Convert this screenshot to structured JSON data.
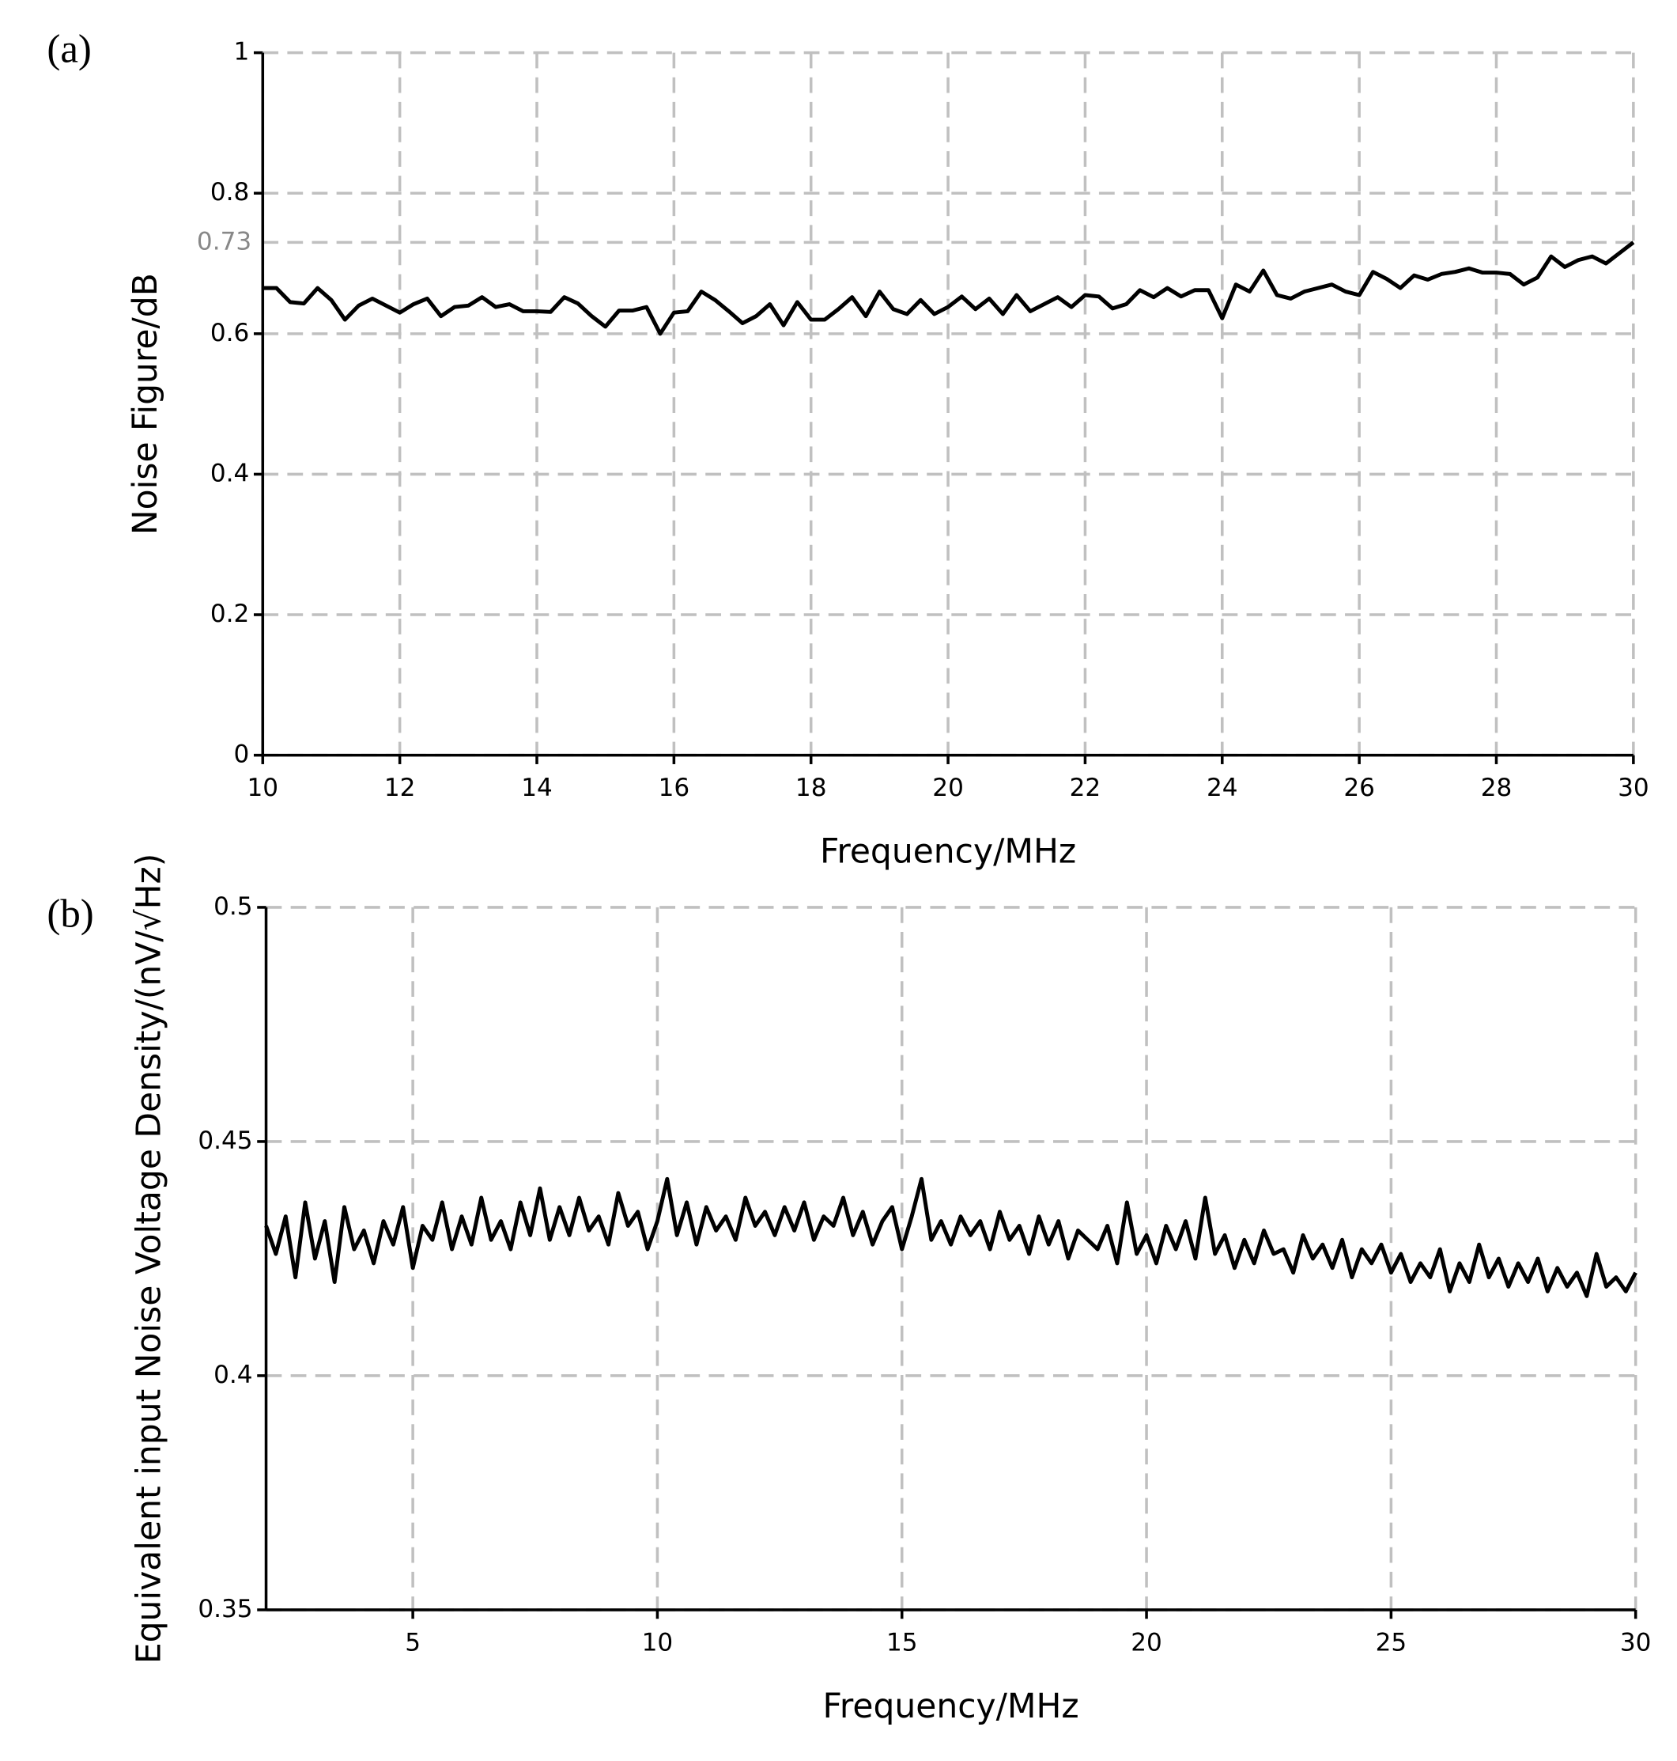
{
  "chart_data": [
    {
      "type": "line",
      "panel_label": "(a)",
      "x_label": "Frequency/MHz",
      "y_label": "Noise Figure/dB",
      "xlim": [
        10,
        30
      ],
      "xticks": [
        10,
        12,
        14,
        16,
        18,
        20,
        22,
        24,
        26,
        28,
        30
      ],
      "ylim": [
        0,
        1
      ],
      "yticks": [
        0,
        0.2,
        0.4,
        0.6,
        0.8,
        1
      ],
      "grid": true,
      "marker_tick": 0.73,
      "marker_color": "#888888",
      "series": [
        {
          "color": "#000000",
          "x": [
            10,
            10.2,
            10.4,
            10.6,
            10.8,
            11,
            11.2,
            11.4,
            11.6,
            11.8,
            12,
            12.2,
            12.4,
            12.6,
            12.8,
            13,
            13.2,
            13.4,
            13.6,
            13.8,
            14,
            14.2,
            14.4,
            14.6,
            14.8,
            15,
            15.2,
            15.4,
            15.6,
            15.8,
            16,
            16.2,
            16.4,
            16.6,
            16.8,
            17,
            17.2,
            17.4,
            17.6,
            17.8,
            18,
            18.2,
            18.4,
            18.6,
            18.8,
            19,
            19.2,
            19.4,
            19.6,
            19.8,
            20,
            20.2,
            20.4,
            20.6,
            20.8,
            21,
            21.2,
            21.4,
            21.6,
            21.8,
            22,
            22.2,
            22.4,
            22.6,
            22.8,
            23,
            23.2,
            23.4,
            23.6,
            23.8,
            24,
            24.2,
            24.4,
            24.6,
            24.8,
            25,
            25.2,
            25.4,
            25.6,
            25.8,
            26,
            26.2,
            26.4,
            26.6,
            26.8,
            27,
            27.2,
            27.4,
            27.6,
            27.8,
            28,
            28.2,
            28.4,
            28.6,
            28.8,
            29,
            29.2,
            29.4,
            29.6,
            29.8,
            30
          ],
          "values": [
            0.665,
            0.665,
            0.645,
            0.643,
            0.665,
            0.648,
            0.62,
            0.64,
            0.65,
            0.64,
            0.63,
            0.642,
            0.65,
            0.625,
            0.638,
            0.64,
            0.652,
            0.638,
            0.642,
            0.632,
            0.632,
            0.631,
            0.652,
            0.643,
            0.625,
            0.61,
            0.633,
            0.633,
            0.638,
            0.6,
            0.63,
            0.632,
            0.66,
            0.648,
            0.632,
            0.615,
            0.625,
            0.642,
            0.612,
            0.645,
            0.62,
            0.62,
            0.635,
            0.652,
            0.625,
            0.66,
            0.635,
            0.628,
            0.648,
            0.628,
            0.638,
            0.653,
            0.635,
            0.65,
            0.628,
            0.655,
            0.632,
            0.642,
            0.652,
            0.638,
            0.655,
            0.653,
            0.636,
            0.642,
            0.662,
            0.652,
            0.665,
            0.653,
            0.662,
            0.662,
            0.622,
            0.67,
            0.66,
            0.69,
            0.655,
            0.65,
            0.66,
            0.665,
            0.67,
            0.66,
            0.655,
            0.688,
            0.678,
            0.665,
            0.683,
            0.677,
            0.685,
            0.688,
            0.693,
            0.687,
            0.687,
            0.685,
            0.67,
            0.68,
            0.71,
            0.695,
            0.705,
            0.71,
            0.7,
            0.715,
            0.73
          ]
        }
      ]
    },
    {
      "type": "line",
      "panel_label": "(b)",
      "x_label": "Frequency/MHz",
      "y_label": "Equivalent input Noise Voltage Density/(nV/√Hz)",
      "xlim": [
        2,
        30
      ],
      "xticks": [
        5,
        10,
        15,
        20,
        25,
        30
      ],
      "ylim": [
        0.35,
        0.5
      ],
      "yticks": [
        0.35,
        0.4,
        0.45,
        0.5
      ],
      "grid": true,
      "series": [
        {
          "color": "#000000",
          "x": [
            2,
            2.2,
            2.4,
            2.6,
            2.8,
            3,
            3.2,
            3.4,
            3.6,
            3.8,
            4,
            4.2,
            4.4,
            4.6,
            4.8,
            5,
            5.2,
            5.4,
            5.6,
            5.8,
            6,
            6.2,
            6.4,
            6.6,
            6.8,
            7,
            7.2,
            7.4,
            7.6,
            7.8,
            8,
            8.2,
            8.4,
            8.6,
            8.8,
            9,
            9.2,
            9.4,
            9.6,
            9.8,
            10,
            10.2,
            10.4,
            10.6,
            10.8,
            11,
            11.2,
            11.4,
            11.6,
            11.8,
            12,
            12.2,
            12.4,
            12.6,
            12.8,
            13,
            13.2,
            13.4,
            13.6,
            13.8,
            14,
            14.2,
            14.4,
            14.6,
            14.8,
            15,
            15.2,
            15.4,
            15.6,
            15.8,
            16,
            16.2,
            16.4,
            16.6,
            16.8,
            17,
            17.2,
            17.4,
            17.6,
            17.8,
            18,
            18.2,
            18.4,
            18.6,
            18.8,
            19,
            19.2,
            19.4,
            19.6,
            19.8,
            20,
            20.2,
            20.4,
            20.6,
            20.8,
            21,
            21.2,
            21.4,
            21.6,
            21.8,
            22,
            22.2,
            22.4,
            22.6,
            22.8,
            23,
            23.2,
            23.4,
            23.6,
            23.8,
            24,
            24.2,
            24.4,
            24.6,
            24.8,
            25,
            25.2,
            25.4,
            25.6,
            25.8,
            26,
            26.2,
            26.4,
            26.6,
            26.8,
            27,
            27.2,
            27.4,
            27.6,
            27.8,
            28,
            28.2,
            28.4,
            28.6,
            28.8,
            29,
            29.2,
            29.4,
            29.6,
            29.8,
            30
          ],
          "values": [
            0.432,
            0.426,
            0.434,
            0.421,
            0.437,
            0.425,
            0.433,
            0.42,
            0.436,
            0.427,
            0.431,
            0.424,
            0.433,
            0.428,
            0.436,
            0.423,
            0.432,
            0.429,
            0.437,
            0.427,
            0.434,
            0.428,
            0.438,
            0.429,
            0.433,
            0.427,
            0.437,
            0.43,
            0.44,
            0.429,
            0.436,
            0.43,
            0.438,
            0.431,
            0.434,
            0.428,
            0.439,
            0.432,
            0.435,
            0.427,
            0.433,
            0.442,
            0.43,
            0.437,
            0.428,
            0.436,
            0.431,
            0.434,
            0.429,
            0.438,
            0.432,
            0.435,
            0.43,
            0.436,
            0.431,
            0.437,
            0.429,
            0.434,
            0.432,
            0.438,
            0.43,
            0.435,
            0.428,
            0.433,
            0.436,
            0.427,
            0.434,
            0.442,
            0.429,
            0.433,
            0.428,
            0.434,
            0.43,
            0.433,
            0.427,
            0.435,
            0.429,
            0.432,
            0.426,
            0.434,
            0.428,
            0.433,
            0.425,
            0.431,
            0.429,
            0.427,
            0.432,
            0.424,
            0.437,
            0.426,
            0.43,
            0.424,
            0.432,
            0.427,
            0.433,
            0.425,
            0.438,
            0.426,
            0.43,
            0.423,
            0.429,
            0.424,
            0.431,
            0.426,
            0.427,
            0.422,
            0.43,
            0.425,
            0.428,
            0.423,
            0.429,
            0.421,
            0.427,
            0.424,
            0.428,
            0.422,
            0.426,
            0.42,
            0.424,
            0.421,
            0.427,
            0.418,
            0.424,
            0.42,
            0.428,
            0.421,
            0.425,
            0.419,
            0.424,
            0.42,
            0.425,
            0.418,
            0.423,
            0.419,
            0.422,
            0.417,
            0.426,
            0.419,
            0.421,
            0.418,
            0.422
          ]
        }
      ]
    }
  ]
}
